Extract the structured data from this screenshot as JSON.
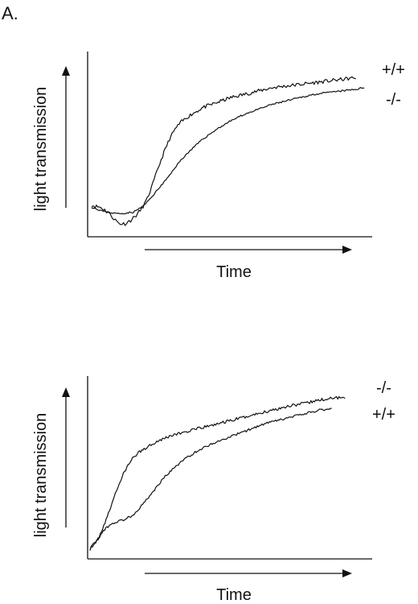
{
  "figure": {
    "panel_label": "A."
  },
  "chart_data": [
    {
      "type": "line",
      "title": "",
      "xlabel": "Time",
      "ylabel": "light transmission",
      "xlim": [
        0,
        100
      ],
      "ylim": [
        0,
        100
      ],
      "grid": false,
      "legend": "right, at line ends",
      "series": [
        {
          "name": "+/+",
          "x": [
            0,
            3,
            6,
            8,
            10,
            12,
            14,
            16,
            18,
            20,
            22,
            24,
            26,
            28,
            30,
            32,
            35,
            40,
            45,
            50,
            55,
            60,
            65,
            70,
            75,
            80,
            85,
            90,
            95
          ],
          "y": [
            15,
            14,
            11,
            7,
            4,
            4,
            6,
            9,
            13,
            19,
            28,
            38,
            47,
            55,
            61,
            65,
            69,
            74,
            77,
            80,
            82,
            84,
            86,
            87,
            88,
            89,
            90,
            91,
            92
          ],
          "noise": 1.1,
          "seed": 11
        },
        {
          "name": "-/-",
          "x": [
            0,
            5,
            10,
            15,
            18,
            20,
            22,
            25,
            28,
            30,
            33,
            36,
            40,
            45,
            50,
            55,
            60,
            65,
            70,
            75,
            80,
            85,
            90,
            95,
            98
          ],
          "y": [
            14,
            11,
            10,
            11,
            14,
            17,
            21,
            27,
            33,
            38,
            44,
            49,
            55,
            61,
            66,
            70,
            73,
            76,
            78,
            80,
            82,
            83,
            84,
            85,
            86
          ],
          "noise": 0.5,
          "seed": 23
        }
      ]
    },
    {
      "type": "line",
      "title": "",
      "xlabel": "Time",
      "ylabel": "light transmission",
      "xlim": [
        0,
        100
      ],
      "ylim": [
        0,
        100
      ],
      "grid": false,
      "legend": "right, at line ends",
      "series": [
        {
          "name": "-/-",
          "x": [
            0,
            3,
            6,
            9,
            12,
            15,
            18,
            21,
            24,
            27,
            30,
            35,
            40,
            45,
            50,
            55,
            60,
            65,
            70,
            75,
            80,
            85,
            90,
            95
          ],
          "y": [
            3,
            9,
            20,
            34,
            46,
            55,
            60,
            63,
            66,
            68,
            70,
            72,
            74,
            76,
            78,
            80,
            82,
            84,
            86,
            88,
            89,
            91,
            92,
            93
          ],
          "noise": 0.9,
          "seed": 37
        },
        {
          "name": "+/+",
          "x": [
            0,
            3,
            5,
            8,
            12,
            16,
            20,
            24,
            28,
            32,
            36,
            40,
            45,
            50,
            55,
            60,
            65,
            70,
            75,
            80,
            85,
            90
          ],
          "y": [
            3,
            9,
            14,
            18,
            20,
            23,
            30,
            38,
            46,
            52,
            57,
            61,
            65,
            68,
            71,
            74,
            77,
            79,
            81,
            83,
            85,
            86
          ],
          "noise": 0.7,
          "seed": 53
        }
      ]
    }
  ]
}
